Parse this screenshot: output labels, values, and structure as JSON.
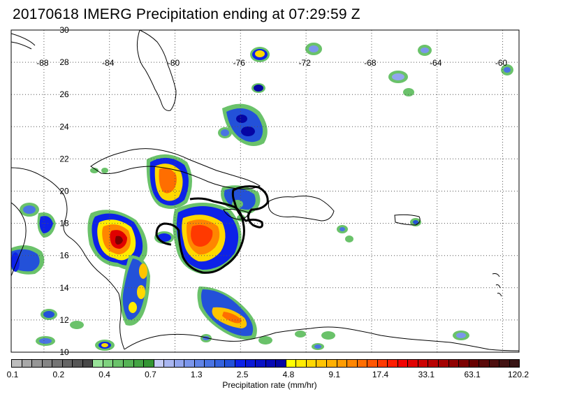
{
  "title": "20170618 IMERG Precipitation ending at 07:29:59 Z",
  "map": {
    "lon_range": [
      -90,
      -59
    ],
    "lat_range": [
      10,
      30
    ],
    "lon_labels": [
      "-88",
      "-84",
      "-80",
      "-76",
      "-72",
      "-68",
      "-64",
      "-60"
    ],
    "lat_labels": [
      "30",
      "28",
      "26",
      "24",
      "22",
      "20",
      "18",
      "16",
      "14",
      "12",
      "10"
    ],
    "grid": "dotted"
  },
  "colorbar": {
    "label": "Precipitation rate (mm/hr)",
    "tick_labels": [
      "0.1",
      "0.2",
      "0.4",
      "0.7",
      "1.3",
      "2.5",
      "4.8",
      "9.1",
      "17.4",
      "33.1",
      "63.1",
      "120.2"
    ],
    "colors": [
      "#bdbdbd",
      "#a8a8a8",
      "#969696",
      "#858585",
      "#747474",
      "#646464",
      "#555555",
      "#474747",
      "#98e298",
      "#7fd27f",
      "#6ac26a",
      "#56b356",
      "#44a444",
      "#339533",
      "#c4cbf5",
      "#a9b6f1",
      "#92a5ee",
      "#7b96eb",
      "#6184e7",
      "#4a74e3",
      "#3563de",
      "#2351d9",
      "#0d22e8",
      "#0b19d7",
      "#0911c5",
      "#0709b4",
      "#0505a3",
      "#ffff00",
      "#ffec00",
      "#ffd800",
      "#ffc400",
      "#ffb000",
      "#ff9c00",
      "#ff8600",
      "#ff6e00",
      "#ff5500",
      "#ff3900",
      "#ff1d00",
      "#f20000",
      "#e00000",
      "#cc0000",
      "#b80000",
      "#a40000",
      "#900000",
      "#7c0000",
      "#680000",
      "#5a0a0a",
      "#4e0f0f",
      "#421212",
      "#381414"
    ]
  }
}
